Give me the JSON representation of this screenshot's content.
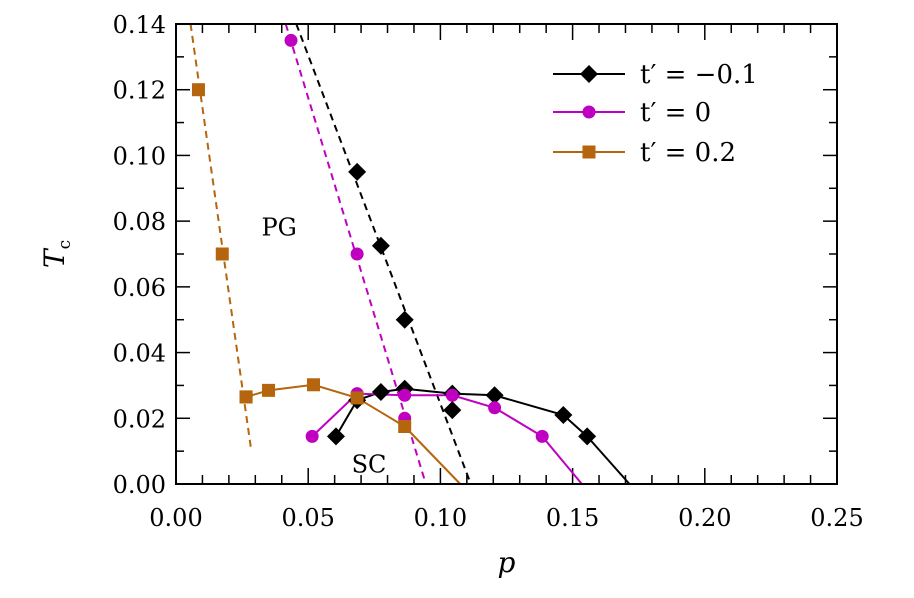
{
  "chart_data": {
    "type": "line",
    "xlabel": "p",
    "ylabel": "T",
    "ylabel_sub": "c",
    "xlim": [
      0,
      0.25
    ],
    "ylim": [
      0,
      0.14
    ],
    "xticks": [
      0.0,
      0.05,
      0.1,
      0.15,
      0.2,
      0.25
    ],
    "xtick_labels": [
      "0.00",
      "0.05",
      "0.10",
      "0.15",
      "0.20",
      "0.25"
    ],
    "yticks": [
      0.0,
      0.02,
      0.04,
      0.06,
      0.08,
      0.1,
      0.12,
      0.14
    ],
    "ytick_labels": [
      "0.00",
      "0.02",
      "0.04",
      "0.06",
      "0.08",
      "0.10",
      "0.12",
      "0.14"
    ],
    "legend_position": "top-right",
    "annotations": [
      {
        "text": "PG",
        "x": 0.039,
        "y": 0.078
      },
      {
        "text": "SC",
        "x": 0.073,
        "y": 0.006
      }
    ],
    "series": [
      {
        "name": "t′ = −0.1",
        "color": "#000000",
        "marker": "diamond",
        "sc_points": [
          [
            0.0605,
            0.0145
          ],
          [
            0.0685,
            0.0255
          ],
          [
            0.0775,
            0.028
          ],
          [
            0.0865,
            0.029
          ],
          [
            0.1045,
            0.0275
          ],
          [
            0.1205,
            0.027
          ],
          [
            0.1465,
            0.021
          ],
          [
            0.1555,
            0.0145
          ]
        ],
        "sc_tail": [
          [
            0.1555,
            0.0145
          ],
          [
            0.1715,
            0.0
          ]
        ],
        "pg_points": [
          [
            0.0685,
            0.095
          ],
          [
            0.0775,
            0.0725
          ],
          [
            0.0865,
            0.05
          ],
          [
            0.1045,
            0.0225
          ]
        ],
        "pg_line": [
          [
            0.0455,
            0.14
          ],
          [
            0.1115,
            0.0
          ]
        ]
      },
      {
        "name": "t′ = 0",
        "color": "#c000c0",
        "marker": "circle",
        "sc_points": [
          [
            0.0515,
            0.0145
          ],
          [
            0.0685,
            0.0275
          ],
          [
            0.0865,
            0.027
          ],
          [
            0.1045,
            0.027
          ],
          [
            0.1205,
            0.0232
          ],
          [
            0.1385,
            0.0145
          ]
        ],
        "sc_tail": [
          [
            0.1385,
            0.0145
          ],
          [
            0.1535,
            0.0
          ]
        ],
        "pg_points": [
          [
            0.0435,
            0.135
          ],
          [
            0.0685,
            0.07
          ],
          [
            0.0865,
            0.02
          ]
        ],
        "pg_line": [
          [
            0.0415,
            0.14
          ],
          [
            0.0945,
            0.0
          ]
        ]
      },
      {
        "name": "t′ = 0.2",
        "color": "#b5650d",
        "marker": "square",
        "sc_points": [
          [
            0.0265,
            0.0265
          ],
          [
            0.035,
            0.0285
          ],
          [
            0.052,
            0.0302
          ],
          [
            0.0685,
            0.0262
          ],
          [
            0.0865,
            0.0175
          ]
        ],
        "sc_tail": [
          [
            0.0865,
            0.0175
          ],
          [
            0.1075,
            0.0
          ]
        ],
        "pg_points": [
          [
            0.0085,
            0.12
          ],
          [
            0.0175,
            0.07
          ],
          [
            0.0265,
            0.0265
          ]
        ],
        "pg_line": [
          [
            0.0055,
            0.14
          ],
          [
            0.0285,
            0.01
          ]
        ]
      }
    ]
  }
}
